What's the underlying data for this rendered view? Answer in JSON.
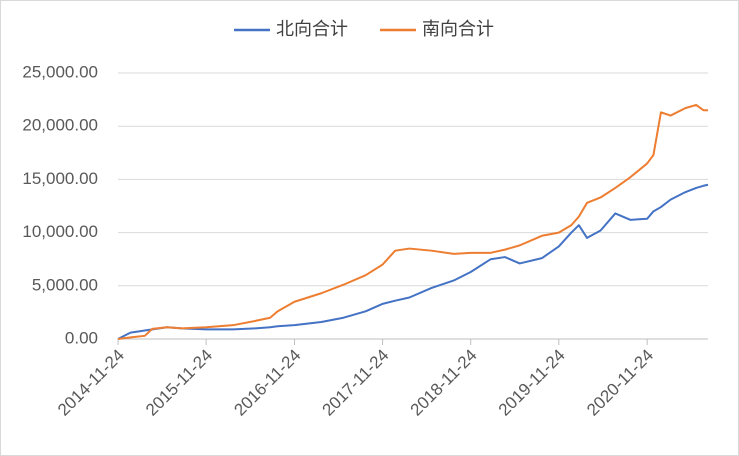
{
  "chart_data": {
    "type": "line",
    "x": [
      "2014-11-24",
      "2015-01-15",
      "2015-03-15",
      "2015-04-15",
      "2015-06-15",
      "2015-08-15",
      "2015-11-24",
      "2016-03-15",
      "2016-06-15",
      "2016-08-15",
      "2016-09-15",
      "2016-11-24",
      "2017-03-15",
      "2017-06-15",
      "2017-09-15",
      "2017-11-24",
      "2018-01-15",
      "2018-03-15",
      "2018-06-15",
      "2018-09-15",
      "2018-11-24",
      "2019-02-15",
      "2019-04-15",
      "2019-06-15",
      "2019-09-15",
      "2019-11-24",
      "2020-01-15",
      "2020-02-15",
      "2020-03-20",
      "2020-05-15",
      "2020-07-15",
      "2020-09-15",
      "2020-11-24",
      "2020-12-20",
      "2021-01-20",
      "2021-03-01",
      "2021-05-01",
      "2021-06-15",
      "2021-07-15",
      "2021-08-03"
    ],
    "series": [
      {
        "name": "北向合计",
        "color": "#4472c4",
        "values": [
          0,
          600,
          800,
          900,
          1100,
          1000,
          900,
          900,
          1000,
          1100,
          1200,
          1300,
          1600,
          2000,
          2600,
          3300,
          3600,
          3900,
          4800,
          5500,
          6300,
          7500,
          7700,
          7100,
          7600,
          8700,
          10000,
          10700,
          9500,
          10200,
          11800,
          11200,
          11300,
          12000,
          12400,
          13100,
          13800,
          14200,
          14400,
          14500
        ]
      },
      {
        "name": "南向合计",
        "color": "#ed7d31",
        "values": [
          0,
          150,
          300,
          950,
          1100,
          1000,
          1100,
          1300,
          1700,
          2000,
          2600,
          3500,
          4300,
          5100,
          6000,
          7000,
          8300,
          8500,
          8300,
          8000,
          8100,
          8100,
          8400,
          8800,
          9700,
          10000,
          10700,
          11500,
          12800,
          13300,
          14200,
          15200,
          16500,
          17300,
          21300,
          21000,
          21700,
          22000,
          21500,
          21500
        ]
      }
    ],
    "xlim": [
      "2014-11-24",
      "2021-08-03"
    ],
    "xticks": [
      "2014-11-24",
      "2015-11-24",
      "2016-11-24",
      "2017-11-24",
      "2018-11-24",
      "2019-11-24",
      "2020-11-24"
    ],
    "ylim": [
      0,
      25000
    ],
    "yticks": [
      {
        "value": 0,
        "label": "0.00"
      },
      {
        "value": 5000,
        "label": "5,000.00"
      },
      {
        "value": 10000,
        "label": "10,000.00"
      },
      {
        "value": 15000,
        "label": "15,000.00"
      },
      {
        "value": 20000,
        "label": "20,000.00"
      },
      {
        "value": 25000,
        "label": "25,000.00"
      }
    ],
    "grid": true
  }
}
